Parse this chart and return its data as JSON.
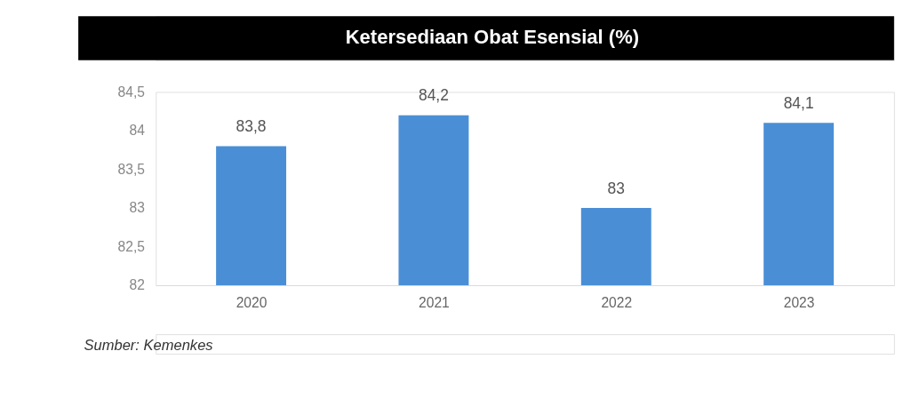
{
  "chart_data": {
    "type": "bar",
    "title": "Ketersediaan Obat Esensial (%)",
    "categories": [
      "2020",
      "2021",
      "2022",
      "2023"
    ],
    "values": [
      83.8,
      84.2,
      83,
      84.1
    ],
    "value_labels": [
      "83,8",
      "84,2",
      "83",
      "84,1"
    ],
    "color": "#4a8fd6",
    "ylim": [
      82,
      84.5
    ],
    "yticks": [
      82,
      {
        "value": 82.5,
        "label": "82,5"
      },
      83,
      {
        "value": 83.5,
        "label": "83,5"
      },
      84,
      {
        "value": 84.5,
        "label": "84,5"
      }
    ],
    "grid": false,
    "annotations": [
      "Sumber: Kemenkes"
    ]
  }
}
